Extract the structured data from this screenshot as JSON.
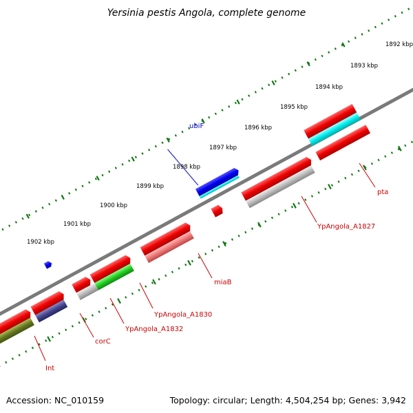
{
  "title": "Yersinia pestis Angola, complete genome",
  "footer": {
    "accession": "Accession: NC_010159",
    "summary": "Topology: circular; Length: 4,504,254 bp; Genes: 3,942"
  },
  "scale": {
    "ticks": [
      "1892 kbp",
      "1893 kbp",
      "1894 kbp",
      "1895 kbp",
      "1896 kbp",
      "1897 kbp",
      "1898 kbp",
      "1899 kbp",
      "1900 kbp",
      "1901 kbp",
      "1902 kbp"
    ]
  },
  "genes": [
    {
      "label": "ubiF",
      "color": "#0000cc"
    },
    {
      "label": "pta",
      "color": "#cc0000"
    },
    {
      "label": "YpAngola_A1827",
      "color": "#cc0000"
    },
    {
      "label": "miaB",
      "color": "#cc0000"
    },
    {
      "label": "YpAngola_A1830",
      "color": "#cc0000"
    },
    {
      "label": "YpAngola_A1832",
      "color": "#cc0000"
    },
    {
      "label": "corC",
      "color": "#cc0000"
    },
    {
      "label": "Int",
      "color": "#cc0000"
    }
  ],
  "colors": {
    "cds": "#ee0000",
    "gc_skew_plus": "#00bbbb",
    "gc_skew_minus": "#aaaaaa",
    "blue_feature": "#0000ee",
    "green_feature": "#22cc22",
    "olive_feature": "#667722",
    "navy_feature": "#444488",
    "pink_feature": "#ee7777",
    "backbone": "#777777",
    "tick_color": "#117711"
  }
}
